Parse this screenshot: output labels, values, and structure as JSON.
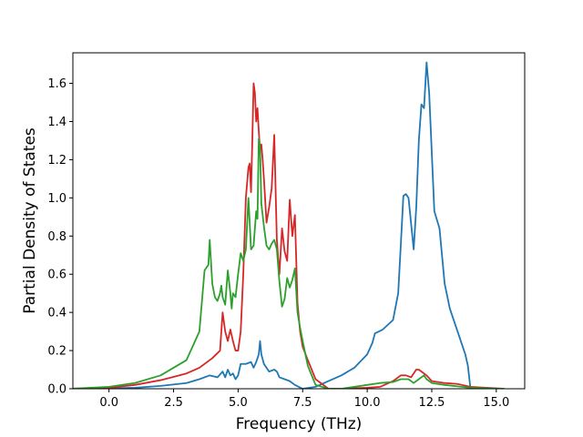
{
  "chart_data": {
    "type": "line",
    "title": "",
    "xlabel": "Frequency (THz)",
    "ylabel": "Partial Density of States",
    "xlim": [
      -1.4,
      16.1
    ],
    "ylim": [
      0.0,
      1.76
    ],
    "xticks": [
      0.0,
      2.5,
      5.0,
      7.5,
      10.0,
      12.5,
      15.0
    ],
    "xtick_labels": [
      "0.0",
      "2.5",
      "5.0",
      "7.5",
      "10.0",
      "12.5",
      "15.0"
    ],
    "yticks": [
      0.0,
      0.2,
      0.4,
      0.6,
      0.8,
      1.0,
      1.2,
      1.4,
      1.6
    ],
    "ytick_labels": [
      "0.0",
      "0.2",
      "0.4",
      "0.6",
      "0.8",
      "1.0",
      "1.2",
      "1.4",
      "1.6"
    ],
    "grid": false,
    "legend": "none",
    "series": [
      {
        "color": "#1f77b4",
        "x": [
          -1.5,
          0,
          1,
          2,
          3,
          3.5,
          3.9,
          4.2,
          4.4,
          4.5,
          4.6,
          4.7,
          4.8,
          4.9,
          5.0,
          5.1,
          5.3,
          5.5,
          5.6,
          5.7,
          5.8,
          5.85,
          5.9,
          6.0,
          6.2,
          6.4,
          6.5,
          6.6,
          6.8,
          7.0,
          7.2,
          7.5,
          8.0,
          8.5,
          9.0,
          9.5,
          10.0,
          10.2,
          10.3,
          10.6,
          11.0,
          11.2,
          11.3,
          11.4,
          11.5,
          11.6,
          11.8,
          11.9,
          12.0,
          12.1,
          12.2,
          12.3,
          12.4,
          12.6,
          12.8,
          13.0,
          13.2,
          13.5,
          13.8,
          13.9,
          14.0,
          15.3
        ],
        "y": [
          0.0,
          0.002,
          0.005,
          0.015,
          0.03,
          0.05,
          0.07,
          0.06,
          0.09,
          0.06,
          0.1,
          0.07,
          0.08,
          0.05,
          0.07,
          0.13,
          0.13,
          0.14,
          0.11,
          0.14,
          0.18,
          0.25,
          0.18,
          0.13,
          0.09,
          0.1,
          0.09,
          0.06,
          0.05,
          0.04,
          0.02,
          0.0,
          0.01,
          0.04,
          0.07,
          0.11,
          0.18,
          0.24,
          0.29,
          0.31,
          0.36,
          0.5,
          0.75,
          1.01,
          1.02,
          1.0,
          0.73,
          0.95,
          1.3,
          1.49,
          1.47,
          1.71,
          1.55,
          0.93,
          0.84,
          0.55,
          0.42,
          0.3,
          0.18,
          0.12,
          0.0,
          0.0
        ]
      },
      {
        "color": "#d62728",
        "x": [
          -1.5,
          0,
          1,
          2,
          3,
          3.5,
          4.0,
          4.3,
          4.4,
          4.5,
          4.6,
          4.7,
          4.8,
          4.9,
          5.0,
          5.1,
          5.2,
          5.3,
          5.4,
          5.45,
          5.5,
          5.55,
          5.6,
          5.65,
          5.7,
          5.75,
          5.8,
          5.85,
          5.9,
          5.95,
          6.0,
          6.1,
          6.2,
          6.3,
          6.4,
          6.5,
          6.6,
          6.7,
          6.8,
          6.9,
          7.0,
          7.1,
          7.2,
          7.3,
          7.4,
          7.5,
          7.7,
          8.0,
          8.5,
          9.0,
          10.0,
          10.5,
          11.0,
          11.3,
          11.5,
          11.7,
          11.9,
          12.0,
          12.1,
          12.3,
          12.5,
          13.0,
          13.5,
          14.0,
          15.3
        ],
        "y": [
          0.0,
          0.005,
          0.02,
          0.045,
          0.08,
          0.11,
          0.16,
          0.2,
          0.4,
          0.3,
          0.25,
          0.31,
          0.25,
          0.2,
          0.2,
          0.3,
          0.6,
          1.0,
          1.16,
          1.18,
          1.03,
          1.3,
          1.6,
          1.55,
          1.4,
          1.47,
          1.35,
          1.25,
          1.28,
          1.2,
          1.1,
          0.87,
          0.95,
          1.05,
          1.33,
          0.78,
          0.6,
          0.84,
          0.72,
          0.67,
          0.99,
          0.8,
          0.91,
          0.45,
          0.3,
          0.22,
          0.15,
          0.05,
          0.0,
          0.0,
          0.005,
          0.01,
          0.04,
          0.07,
          0.07,
          0.06,
          0.1,
          0.1,
          0.09,
          0.07,
          0.04,
          0.03,
          0.025,
          0.01,
          0.0
        ]
      },
      {
        "color": "#2ca02c",
        "x": [
          -1.5,
          0,
          1,
          2,
          3,
          3.5,
          3.7,
          3.85,
          3.9,
          4.0,
          4.1,
          4.2,
          4.3,
          4.35,
          4.4,
          4.5,
          4.6,
          4.7,
          4.75,
          4.8,
          4.9,
          5.0,
          5.1,
          5.2,
          5.3,
          5.4,
          5.5,
          5.6,
          5.7,
          5.75,
          5.8,
          5.85,
          5.9,
          6.0,
          6.1,
          6.2,
          6.3,
          6.4,
          6.5,
          6.6,
          6.7,
          6.8,
          6.9,
          7.0,
          7.1,
          7.2,
          7.3,
          7.4,
          7.5,
          7.7,
          8.0,
          8.5,
          9.0,
          10.0,
          10.5,
          11.0,
          11.3,
          11.6,
          11.8,
          12.0,
          12.2,
          12.3,
          12.5,
          13.0,
          14.0,
          15.3
        ],
        "y": [
          0.0,
          0.01,
          0.03,
          0.07,
          0.15,
          0.3,
          0.62,
          0.65,
          0.78,
          0.55,
          0.48,
          0.46,
          0.5,
          0.54,
          0.48,
          0.44,
          0.62,
          0.5,
          0.42,
          0.5,
          0.48,
          0.6,
          0.71,
          0.67,
          0.73,
          1.0,
          0.73,
          0.75,
          0.93,
          0.89,
          1.31,
          1.26,
          0.97,
          0.85,
          0.75,
          0.73,
          0.76,
          0.78,
          0.73,
          0.56,
          0.43,
          0.47,
          0.58,
          0.53,
          0.57,
          0.63,
          0.4,
          0.32,
          0.25,
          0.12,
          0.02,
          0.0,
          0.0,
          0.02,
          0.03,
          0.035,
          0.05,
          0.05,
          0.03,
          0.05,
          0.07,
          0.05,
          0.03,
          0.02,
          0.005,
          0.0
        ]
      }
    ]
  }
}
